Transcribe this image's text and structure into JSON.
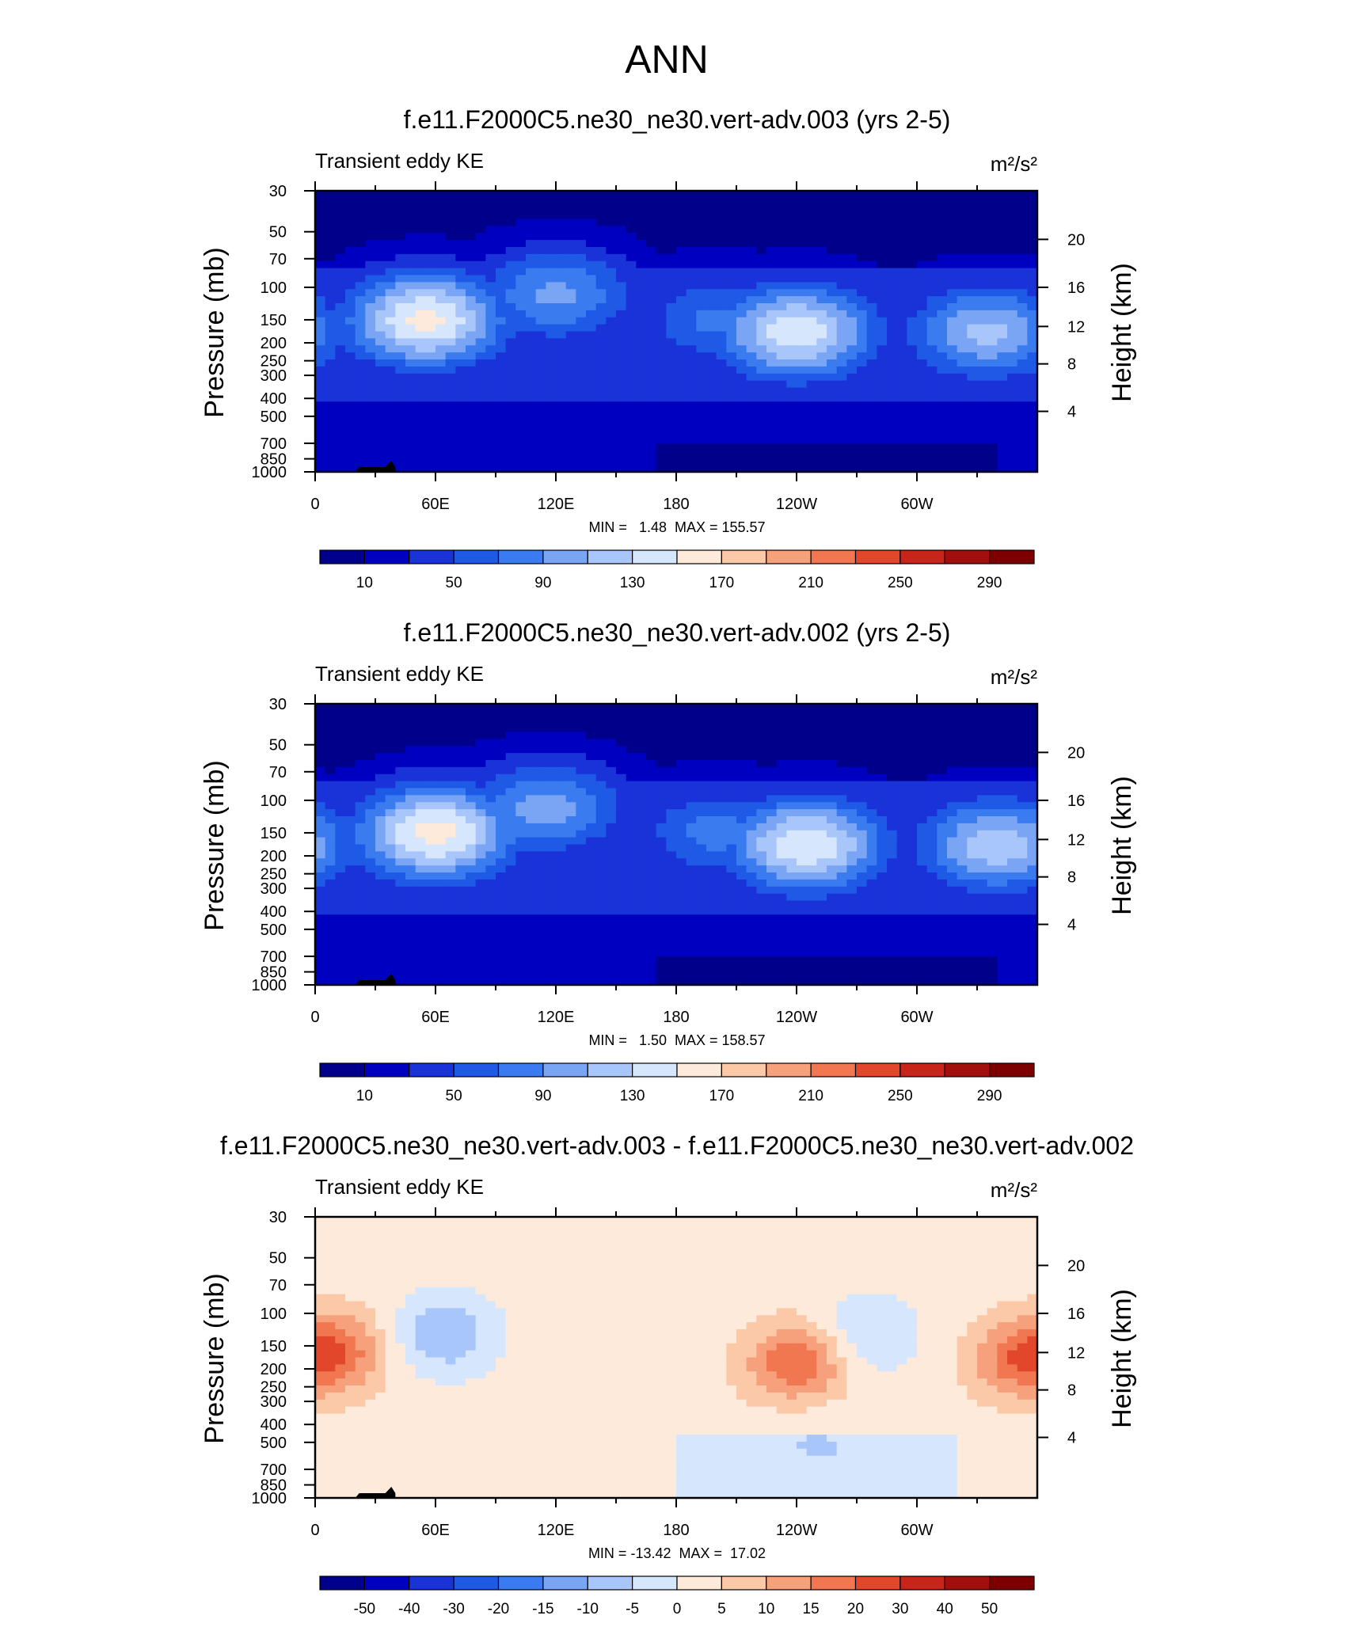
{
  "page_title": "ANN",
  "colors": {
    "abs_scale": [
      "#00008b",
      "#0000c0",
      "#1a33d9",
      "#1f5ae6",
      "#3a7cf0",
      "#7aa5f5",
      "#a9c6fa",
      "#d6e6fd",
      "#fdeada",
      "#fbc8a8",
      "#f6a17c",
      "#f07750",
      "#e3472b",
      "#c8251a",
      "#a1100d",
      "#7d0000"
    ],
    "diff_scale": [
      "#00008b",
      "#0000c0",
      "#1a33d9",
      "#1f5ae6",
      "#3a7cf0",
      "#7aa5f5",
      "#a9c6fa",
      "#d6e6fd",
      "#fdeada",
      "#fbc8a8",
      "#f6a17c",
      "#f07750",
      "#e3472b",
      "#c8251a",
      "#a1100d",
      "#7d0000"
    ],
    "topography": "#000000"
  },
  "chart_data": [
    {
      "type": "heatmap",
      "title": "f.e11.F2000C5.ne30_ne30.vert-adv.003 (yrs 2-5)",
      "left_label": "Transient eddy KE",
      "units_label": "m²/s²",
      "ylabel": "Pressure (mb)",
      "y2label": "Height (km)",
      "xlabel": "",
      "x_ticks": [
        "0",
        "60E",
        "120E",
        "180",
        "120W",
        "60W"
      ],
      "y_ticks": [
        "30",
        "50",
        "70",
        "100",
        "150",
        "200",
        "250",
        "300",
        "400",
        "500",
        "700",
        "850",
        "1000"
      ],
      "y2_ticks": [
        "20",
        "16",
        "12",
        "8",
        "4"
      ],
      "minmax": "MIN =   1.48  MAX = 155.57",
      "colorbar_labels": [
        "10",
        "50",
        "90",
        "130",
        "170",
        "210",
        "250",
        "290"
      ],
      "colorbar_levels": [
        10,
        30,
        50,
        70,
        90,
        110,
        130,
        150,
        170,
        190,
        210,
        230,
        250,
        270,
        290
      ],
      "xlim": [
        0,
        360
      ],
      "ylim": [
        1000,
        30
      ],
      "features": [
        {
          "lon": 55,
          "p": 150,
          "v": 155
        },
        {
          "lon": 120,
          "p": 110,
          "v": 95
        },
        {
          "lon": 240,
          "p": 175,
          "v": 145
        },
        {
          "lon": 335,
          "p": 175,
          "v": 115
        },
        {
          "lon": 200,
          "p": 150,
          "v": 75
        }
      ]
    },
    {
      "type": "heatmap",
      "title": "f.e11.F2000C5.ne30_ne30.vert-adv.002 (yrs 2-5)",
      "left_label": "Transient eddy KE",
      "units_label": "m²/s²",
      "ylabel": "Pressure (mb)",
      "y2label": "Height (km)",
      "xlabel": "",
      "x_ticks": [
        "0",
        "60E",
        "120E",
        "180",
        "120W",
        "60W"
      ],
      "y_ticks": [
        "30",
        "50",
        "70",
        "100",
        "150",
        "200",
        "250",
        "300",
        "400",
        "500",
        "700",
        "850",
        "1000"
      ],
      "y2_ticks": [
        "20",
        "16",
        "12",
        "8",
        "4"
      ],
      "minmax": "MIN =   1.50  MAX = 158.57",
      "colorbar_labels": [
        "10",
        "50",
        "90",
        "130",
        "170",
        "210",
        "250",
        "290"
      ],
      "colorbar_levels": [
        10,
        30,
        50,
        70,
        90,
        110,
        130,
        150,
        170,
        190,
        210,
        230,
        250,
        270,
        290
      ],
      "xlim": [
        0,
        360
      ],
      "ylim": [
        1000,
        30
      ],
      "features": [
        {
          "lon": 60,
          "p": 150,
          "v": 158
        },
        {
          "lon": 115,
          "p": 110,
          "v": 100
        },
        {
          "lon": 245,
          "p": 175,
          "v": 148
        },
        {
          "lon": 340,
          "p": 175,
          "v": 125
        },
        {
          "lon": 200,
          "p": 150,
          "v": 78
        }
      ]
    },
    {
      "type": "heatmap",
      "title": "f.e11.F2000C5.ne30_ne30.vert-adv.003 - f.e11.F2000C5.ne30_ne30.vert-adv.002",
      "left_label": "Transient eddy KE",
      "units_label": "m²/s²",
      "ylabel": "Pressure (mb)",
      "y2label": "Height (km)",
      "xlabel": "",
      "x_ticks": [
        "0",
        "60E",
        "120E",
        "180",
        "120W",
        "60W"
      ],
      "y_ticks": [
        "30",
        "50",
        "70",
        "100",
        "150",
        "200",
        "250",
        "300",
        "400",
        "500",
        "700",
        "850",
        "1000"
      ],
      "y2_ticks": [
        "20",
        "16",
        "12",
        "8",
        "4"
      ],
      "minmax": "MIN = -13.42  MAX =  17.02",
      "colorbar_labels": [
        "-50",
        "-40",
        "-30",
        "-20",
        "-15",
        "-10",
        "-5",
        "0",
        "5",
        "10",
        "15",
        "20",
        "30",
        "40",
        "50"
      ],
      "colorbar_levels": [
        -50,
        -40,
        -30,
        -20,
        -15,
        -10,
        -5,
        0,
        5,
        10,
        15,
        20,
        30,
        40,
        50
      ],
      "xlim": [
        0,
        360
      ],
      "ylim": [
        1000,
        30
      ],
      "features": [
        {
          "lon": 10,
          "p": 160,
          "v": 14
        },
        {
          "lon": 240,
          "p": 185,
          "v": 17
        },
        {
          "lon": 350,
          "p": 180,
          "v": 12
        },
        {
          "lon": 65,
          "p": 130,
          "v": -12
        },
        {
          "lon": 275,
          "p": 130,
          "v": -8
        },
        {
          "lon": 250,
          "p": 500,
          "v": -3
        }
      ]
    }
  ]
}
